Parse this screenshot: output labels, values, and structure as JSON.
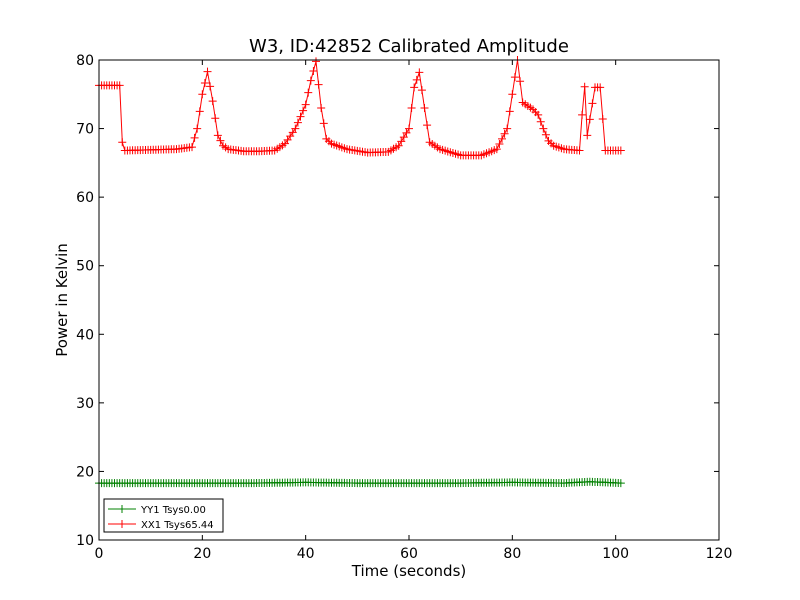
{
  "chart_data": {
    "type": "line",
    "title": "W3, ID:42852 Calibrated Amplitude",
    "xlabel": "Time (seconds)",
    "ylabel": "Power in Kelvin",
    "xlim": [
      0,
      120
    ],
    "ylim": [
      10,
      80
    ],
    "xticks": [
      0,
      20,
      40,
      60,
      80,
      100,
      120
    ],
    "yticks": [
      10,
      20,
      30,
      40,
      50,
      60,
      70,
      80
    ],
    "grid": false,
    "legend_position": "lower-left",
    "series": [
      {
        "name": "YY1 Tsys0.00",
        "color": "#008000",
        "marker": "plus",
        "x": [
          0,
          10,
          20,
          30,
          40,
          50,
          60,
          70,
          80,
          90,
          95,
          101
        ],
        "y": [
          18.3,
          18.3,
          18.3,
          18.3,
          18.4,
          18.3,
          18.3,
          18.3,
          18.4,
          18.3,
          18.5,
          18.3
        ]
      },
      {
        "name": "XX1 Tsys65.44",
        "color": "#ff0000",
        "marker": "plus",
        "x": [
          0,
          2,
          4,
          4.5,
          5,
          10,
          15,
          18,
          19,
          20,
          21,
          22,
          23,
          24,
          25,
          28,
          31,
          34,
          36,
          38,
          40,
          41,
          42,
          43,
          44,
          45,
          48,
          52,
          56,
          58,
          60,
          61,
          62,
          63,
          64,
          66,
          70,
          74,
          77,
          79,
          80,
          81,
          82,
          84,
          85,
          86,
          87,
          88,
          90,
          93,
          93.5,
          94,
          94.5,
          96,
          97,
          98,
          100,
          101
        ],
        "y": [
          76.3,
          76.3,
          76.3,
          68,
          66.8,
          66.9,
          67,
          67.3,
          70,
          75,
          78.3,
          74,
          69,
          67.5,
          67,
          66.7,
          66.7,
          66.8,
          67.8,
          70,
          73.5,
          77,
          79.8,
          73,
          68.5,
          67.8,
          67,
          66.5,
          66.6,
          67.5,
          70,
          76,
          78.2,
          73,
          68,
          67,
          66.1,
          66.1,
          67,
          70,
          75,
          80,
          73.8,
          72.8,
          72,
          70,
          68.2,
          67.5,
          67,
          66.8,
          72,
          76.1,
          69,
          76,
          76,
          66.8,
          66.8,
          66.8
        ]
      }
    ]
  }
}
